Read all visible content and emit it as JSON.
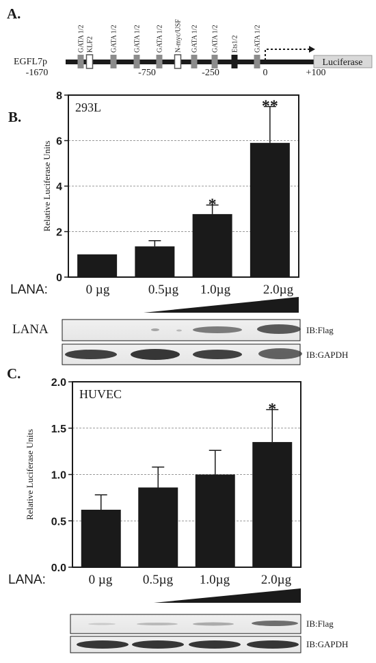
{
  "panels": {
    "a": {
      "label": "A."
    },
    "b": {
      "label": "B."
    },
    "c": {
      "label": "C."
    }
  },
  "promoter": {
    "name": "EGFL7p",
    "reporter": "Luciferase",
    "sites": [
      {
        "label": "GATA 1/2",
        "style": "gray"
      },
      {
        "label": "KLF2",
        "style": "outline"
      },
      {
        "label": "GATA 1/2",
        "style": "gray"
      },
      {
        "label": "GATA 1/2",
        "style": "gray"
      },
      {
        "label": "GATA 1/2",
        "style": "gray"
      },
      {
        "label": "N-myc/USF",
        "style": "outline"
      },
      {
        "label": "GATA 1/2",
        "style": "gray"
      },
      {
        "label": "GATA 1/2",
        "style": "gray"
      },
      {
        "label": "Ets1/2",
        "style": "black"
      },
      {
        "label": "GATA 1/2",
        "style": "gray"
      }
    ],
    "positions": [
      "-1670",
      "-750",
      "-250",
      "0",
      "+100"
    ]
  },
  "chart_data": [
    {
      "type": "bar",
      "panel": "B",
      "inner_label": "293L",
      "ylabel": "Relative Luciferase Units",
      "xlabel": "LANA:",
      "categories": [
        "0 µg",
        "0.5µg",
        "1.0µg",
        "2.0µg"
      ],
      "values": [
        1.0,
        1.35,
        2.77,
        5.9
      ],
      "errors": [
        0,
        0.25,
        0.4,
        1.6
      ],
      "significance": [
        "",
        "",
        "*",
        "**"
      ],
      "ylim": [
        0,
        8
      ],
      "yticks": [
        "0",
        "2",
        "4",
        "6",
        "8"
      ],
      "ytick_values": [
        0,
        2,
        4,
        6,
        8
      ],
      "grid": true
    },
    {
      "type": "bar",
      "panel": "C",
      "inner_label": "HUVEC",
      "ylabel": "Relative Luciferase Units",
      "xlabel": "LANA:",
      "categories": [
        "0 µg",
        "0.5µg",
        "1.0µg",
        "2.0µg"
      ],
      "values": [
        0.62,
        0.86,
        1.0,
        1.35
      ],
      "errors": [
        0.16,
        0.22,
        0.26,
        0.35
      ],
      "significance": [
        "",
        "",
        "",
        "*"
      ],
      "ylim": [
        0,
        2.0
      ],
      "yticks": [
        "0.0",
        "0.5",
        "1.0",
        "1.5",
        "2.0"
      ],
      "ytick_values": [
        0,
        0.5,
        1.0,
        1.5,
        2.0
      ],
      "grid": true
    }
  ],
  "blots": {
    "b": {
      "row_label": "LANA",
      "flag": "IB:Flag",
      "gapdh": "IB:GAPDH"
    },
    "c": {
      "flag": "IB:Flag",
      "gapdh": "IB:GAPDH"
    }
  }
}
